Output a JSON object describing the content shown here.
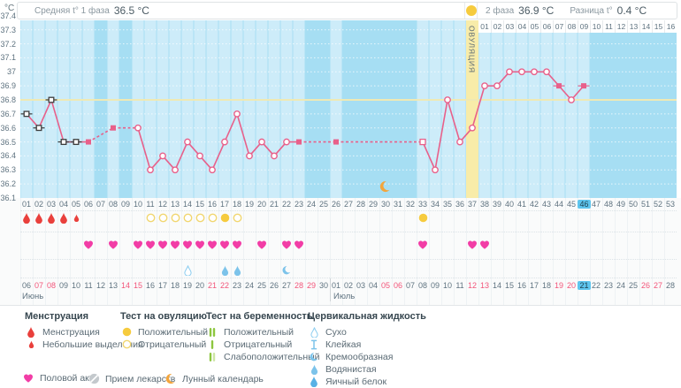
{
  "header": {
    "unit_label": "°C",
    "avg_phase1_label": "Средняя t° 1 фаза",
    "avg_phase1_value": "36.5 °C",
    "phase2_label": "2 фаза",
    "phase2_value": "36.9 °C",
    "diff_label": "Разница t°",
    "diff_value": "0.4 °C"
  },
  "chart_data": {
    "type": "line",
    "ylabel": "°C",
    "ylim": [
      36.1,
      37.4
    ],
    "ytick_labels": [
      "37.4",
      "37.3",
      "37.2",
      "37.1",
      "37",
      "36.9",
      "36.8",
      "36.7",
      "36.6",
      "36.5",
      "36.4",
      "36.3",
      "36.2",
      "36.1"
    ],
    "coverline_temp": 36.8,
    "days_total": 53,
    "current_cycle_day": 46,
    "ovulation_day": 37,
    "ovulation_band_label": "ОВУЛЯЦИЯ",
    "phase2_start_day": 38,
    "phase2_day_labels": [
      "01",
      "02",
      "03",
      "04",
      "05",
      "06",
      "07",
      "08",
      "09",
      "10",
      "11",
      "12",
      "13",
      "14",
      "15",
      "16"
    ],
    "moon_day": 30,
    "points": [
      {
        "day": 1,
        "temp": 36.7,
        "marker": "sq-dark-w"
      },
      {
        "day": 2,
        "temp": 36.6,
        "marker": "sq-dark-w"
      },
      {
        "day": 3,
        "temp": 36.8,
        "marker": "sq-dark-w"
      },
      {
        "day": 4,
        "temp": 36.5,
        "marker": "sq-dark-w"
      },
      {
        "day": 5,
        "temp": 36.5,
        "marker": "sq-dark-w"
      },
      {
        "day": 6,
        "temp": 36.5,
        "marker": "sq-pink"
      },
      {
        "day": 8,
        "temp": 36.6,
        "marker": "sq-pink"
      },
      {
        "day": 10,
        "temp": 36.6,
        "marker": "circle"
      },
      {
        "day": 11,
        "temp": 36.3,
        "marker": "circle"
      },
      {
        "day": 12,
        "temp": 36.4,
        "marker": "circle"
      },
      {
        "day": 13,
        "temp": 36.3,
        "marker": "circle"
      },
      {
        "day": 14,
        "temp": 36.5,
        "marker": "circle"
      },
      {
        "day": 15,
        "temp": 36.4,
        "marker": "circle"
      },
      {
        "day": 16,
        "temp": 36.3,
        "marker": "circle"
      },
      {
        "day": 17,
        "temp": 36.5,
        "marker": "circle"
      },
      {
        "day": 18,
        "temp": 36.7,
        "marker": "circle"
      },
      {
        "day": 19,
        "temp": 36.4,
        "marker": "circle"
      },
      {
        "day": 20,
        "temp": 36.5,
        "marker": "circle"
      },
      {
        "day": 21,
        "temp": 36.4,
        "marker": "circle"
      },
      {
        "day": 22,
        "temp": 36.5,
        "marker": "circle"
      },
      {
        "day": 23,
        "temp": 36.5,
        "marker": "sq-pink"
      },
      {
        "day": 26,
        "temp": 36.5,
        "marker": "sq-pink"
      },
      {
        "day": 33,
        "temp": 36.5,
        "marker": "sq-open"
      },
      {
        "day": 34,
        "temp": 36.3,
        "marker": "circle"
      },
      {
        "day": 35,
        "temp": 36.8,
        "marker": "circle"
      },
      {
        "day": 36,
        "temp": 36.5,
        "marker": "circle"
      },
      {
        "day": 37,
        "temp": 36.6,
        "marker": "circle"
      },
      {
        "day": 38,
        "temp": 36.9,
        "marker": "circle"
      },
      {
        "day": 39,
        "temp": 36.9,
        "marker": "circle"
      },
      {
        "day": 40,
        "temp": 37.0,
        "marker": "circle"
      },
      {
        "day": 41,
        "temp": 37.0,
        "marker": "circle"
      },
      {
        "day": 42,
        "temp": 37.0,
        "marker": "circle"
      },
      {
        "day": 43,
        "temp": 37.0,
        "marker": "circle"
      },
      {
        "day": 44,
        "temp": 36.9,
        "marker": "sq-pink-w"
      },
      {
        "day": 45,
        "temp": 36.8,
        "marker": "circle"
      },
      {
        "day": 46,
        "temp": 36.9,
        "marker": "sq-pink-w"
      }
    ]
  },
  "events": {
    "menstruation": [
      {
        "day": 1,
        "intensity": "normal"
      },
      {
        "day": 2,
        "intensity": "normal"
      },
      {
        "day": 3,
        "intensity": "normal"
      },
      {
        "day": 4,
        "intensity": "normal"
      },
      {
        "day": 5,
        "intensity": "light"
      }
    ],
    "ovulation_tests": [
      {
        "day": 11,
        "result": "negative"
      },
      {
        "day": 12,
        "result": "negative"
      },
      {
        "day": 13,
        "result": "negative"
      },
      {
        "day": 14,
        "result": "negative"
      },
      {
        "day": 15,
        "result": "negative"
      },
      {
        "day": 16,
        "result": "negative"
      },
      {
        "day": 17,
        "result": "positive"
      },
      {
        "day": 18,
        "result": "negative"
      },
      {
        "day": 33,
        "result": "positive"
      }
    ],
    "intercourse_days": [
      6,
      8,
      10,
      11,
      12,
      13,
      14,
      15,
      16,
      17,
      18,
      20,
      22,
      23,
      33,
      37,
      38
    ],
    "cervical_fluid": [
      {
        "day": 14,
        "type": "dry"
      },
      {
        "day": 17,
        "type": "watery"
      },
      {
        "day": 18,
        "type": "watery"
      },
      {
        "day": 22,
        "type": "creamy"
      }
    ]
  },
  "calendar": {
    "months": [
      {
        "name": "Июнь",
        "start_cycle_day": 1,
        "dates": [
          "06",
          "07",
          "08",
          "09",
          "10",
          "11",
          "12",
          "13",
          "14",
          "15",
          "16",
          "17",
          "18",
          "19",
          "20",
          "21",
          "22",
          "23",
          "24",
          "25",
          "26",
          "27",
          "28",
          "29",
          "30"
        ],
        "weekend_dates": [
          "07",
          "08",
          "14",
          "15",
          "21",
          "22",
          "28",
          "29"
        ],
        "highlight_date": null
      },
      {
        "name": "Июль",
        "start_cycle_day": 26,
        "dates": [
          "01",
          "02",
          "03",
          "04",
          "05",
          "06",
          "07",
          "08",
          "09",
          "10",
          "11",
          "12",
          "13",
          "14",
          "15",
          "16",
          "17",
          "18",
          "19",
          "20",
          "21",
          "22",
          "23",
          "24",
          "25",
          "26",
          "27",
          "28"
        ],
        "weekend_dates": [
          "05",
          "06",
          "12",
          "13",
          "19",
          "20",
          "26",
          "27"
        ],
        "highlight_date": "21"
      }
    ]
  },
  "legend": {
    "menstruation": {
      "title": "Менструация",
      "items": [
        {
          "icon": "drop",
          "label": "Менструация"
        },
        {
          "icon": "drop-small",
          "label": "Небольшие выделения"
        }
      ]
    },
    "ovulation_test": {
      "title": "Тест на овуляцию",
      "items": [
        {
          "icon": "test-positive",
          "label": "Положительный"
        },
        {
          "icon": "test-negative",
          "label": "Отрицательный"
        }
      ]
    },
    "pregnancy_test": {
      "title": "Тест на беременность",
      "items": [
        {
          "icon": "preg-positive",
          "label": "Положительный"
        },
        {
          "icon": "preg-negative",
          "label": "Отрицательный"
        },
        {
          "icon": "preg-weak",
          "label": "Слабоположительный"
        }
      ]
    },
    "cervical_fluid": {
      "title": "Цервикальная жидкость",
      "items": [
        {
          "icon": "fluid-dry",
          "label": "Сухо"
        },
        {
          "icon": "fluid-sticky",
          "label": "Клейкая"
        },
        {
          "icon": "fluid-creamy",
          "label": "Кремообразная"
        },
        {
          "icon": "fluid-watery",
          "label": "Водянистая"
        },
        {
          "icon": "fluid-eggwhite",
          "label": "Яичный белок"
        }
      ]
    },
    "footer": [
      {
        "icon": "heart",
        "label": "Половой акт"
      },
      {
        "icon": "pill",
        "label": "Прием лекарств"
      },
      {
        "icon": "moon",
        "label": "Лунный календарь"
      }
    ]
  },
  "colors": {
    "plot_bg": "#a6def3",
    "column_light": "#cdecf9",
    "ovulation_band": "#f8eca9",
    "gridline": "rgba(255,255,255,0.75)",
    "coverline": "#efe9b4",
    "line": "#e8608a",
    "marker_dark": "#3c3c3c",
    "day_text": "#5f7380",
    "weekend_text": "#f2557a",
    "highlight_bg": "#5ec5ee",
    "highlight_text": "#1e4250",
    "drop_red": "#e9403c",
    "test_yellow": "#f6cb3e",
    "test_yellow_outline": "#f1d66f",
    "heart_pink": "#f23da6",
    "fluid_blue": "#7cc3ea",
    "fluid_blue_dark": "#58b1e5",
    "preg_green": "#8dc63f",
    "preg_green_pale": "#cde5a4",
    "pill_gray": "#c4c9cd",
    "moon_orange": "#f3a53c"
  }
}
